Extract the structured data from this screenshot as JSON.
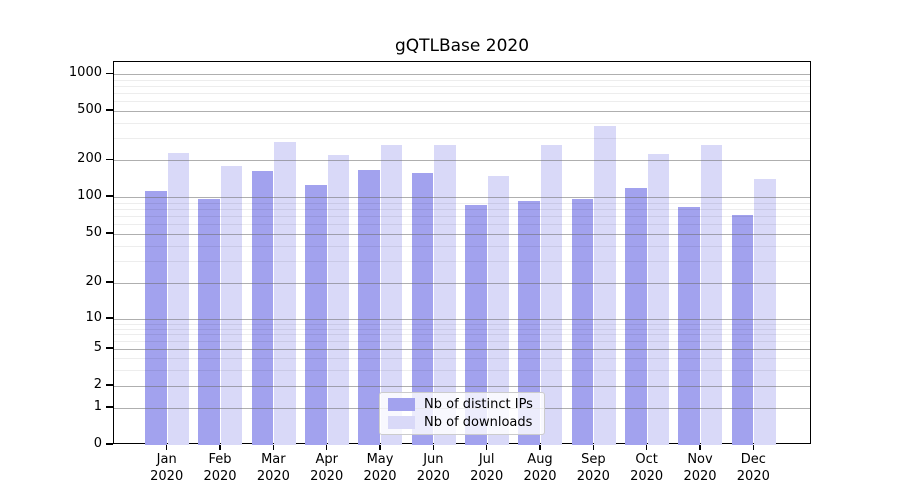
{
  "chart_data": {
    "type": "bar",
    "title": "gQTLBase 2020",
    "yscale": "symlog",
    "ylim": [
      0,
      1260
    ],
    "y_ticks": [
      0,
      1,
      2,
      5,
      10,
      20,
      50,
      100,
      200,
      500,
      1000
    ],
    "grid": "horizontal-major-and-minor",
    "legend_position": "lower-center-inside",
    "categories": [
      "Jan",
      "Feb",
      "Mar",
      "Apr",
      "May",
      "Jun",
      "Jul",
      "Aug",
      "Sep",
      "Oct",
      "Nov",
      "Dec"
    ],
    "year_label": "2020",
    "series": [
      {
        "name": "Nb of distinct IPs",
        "color": "#a2a2ee",
        "values": [
          112,
          97,
          163,
          126,
          166,
          158,
          86,
          92,
          96,
          119,
          83,
          72
        ]
      },
      {
        "name": "Nb of downloads",
        "color": "#d9d9f8",
        "values": [
          227,
          181,
          281,
          222,
          267,
          264,
          149,
          264,
          375,
          223,
          264,
          140
        ]
      }
    ]
  }
}
